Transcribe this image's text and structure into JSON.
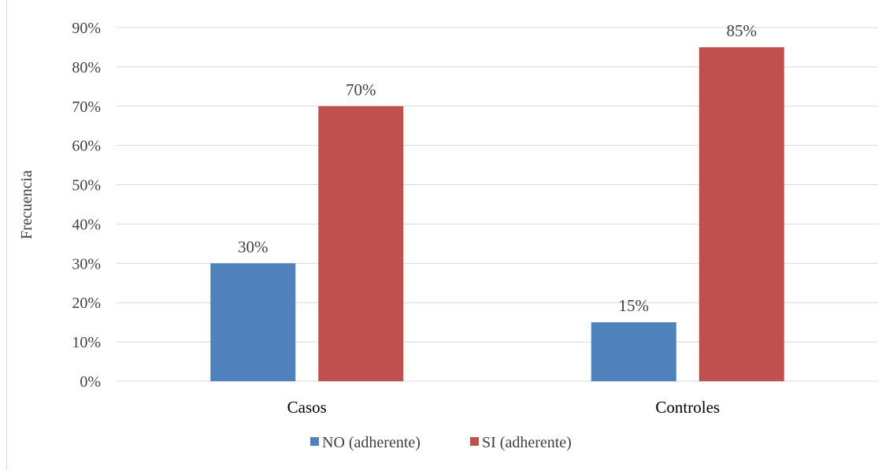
{
  "chart_data": {
    "type": "bar",
    "ylabel": "Frecuencia",
    "xlabel": "",
    "categories": [
      "Casos",
      "Controles"
    ],
    "series": [
      {
        "name": "NO (adherente)",
        "values": [
          30,
          15
        ],
        "labels": [
          "30%",
          "15%"
        ],
        "color": "#4f81bd"
      },
      {
        "name": "SI (adherente)",
        "values": [
          70,
          85
        ],
        "labels": [
          "70%",
          "85%"
        ],
        "color": "#c0504d"
      }
    ],
    "ylim": [
      0,
      90
    ],
    "yticks": [
      "0%",
      "10%",
      "20%",
      "30%",
      "40%",
      "50%",
      "60%",
      "70%",
      "80%",
      "90%"
    ],
    "grid": true,
    "legend_position": "bottom"
  }
}
